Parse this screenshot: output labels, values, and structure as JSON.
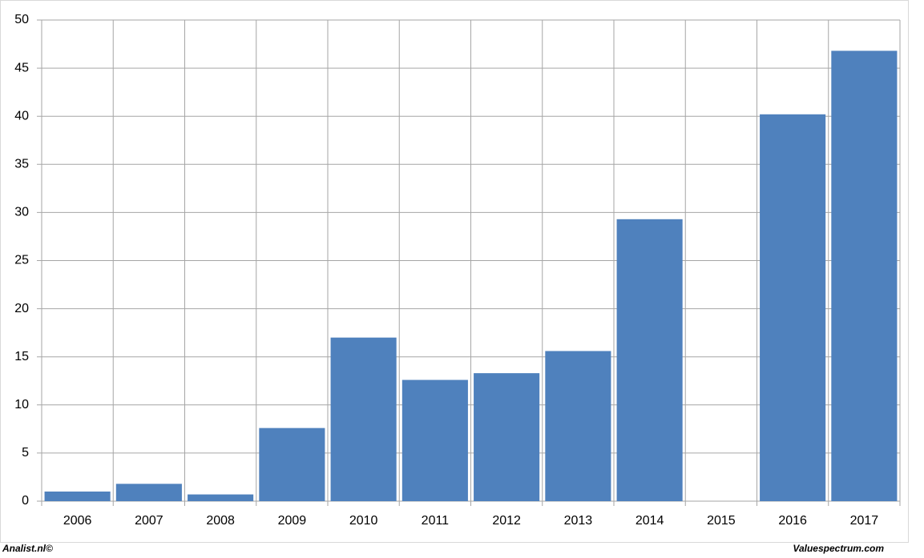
{
  "chart_data": {
    "type": "bar",
    "categories": [
      "2006",
      "2007",
      "2008",
      "2009",
      "2010",
      "2011",
      "2012",
      "2013",
      "2014",
      "2015",
      "2016",
      "2017"
    ],
    "values": [
      1.0,
      1.8,
      0.7,
      7.6,
      17.0,
      12.6,
      13.3,
      15.6,
      29.3,
      null,
      40.2,
      46.8
    ],
    "color": "#4f81bd",
    "ylim": [
      0,
      50
    ],
    "yticks": [
      0,
      5,
      10,
      15,
      20,
      25,
      30,
      35,
      40,
      45,
      50
    ],
    "grid": true,
    "annotations": [
      "Analist.nl©",
      "Valuespectrum.com"
    ]
  }
}
